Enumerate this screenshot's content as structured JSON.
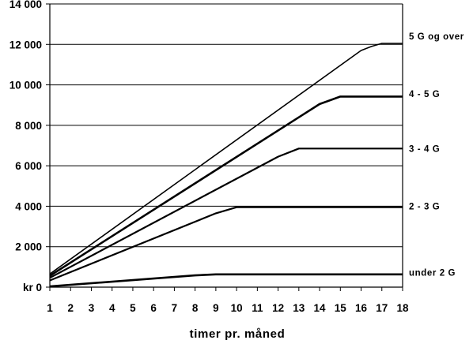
{
  "chart_data": {
    "type": "line",
    "title": "",
    "xlabel": "timer pr. måned",
    "ylabel": "",
    "xlim": [
      1,
      18
    ],
    "ylim": [
      0,
      14000
    ],
    "grid": "horizontal",
    "x_ticks": [
      "1",
      "2",
      "3",
      "4",
      "5",
      "6",
      "7",
      "8",
      "9",
      "10",
      "11",
      "12",
      "13",
      "14",
      "15",
      "16",
      "17",
      "18"
    ],
    "y_ticks": [
      "kr 0",
      "2 000",
      "4 000",
      "6 000",
      "8 000",
      "10 000",
      "12 000",
      "14 000"
    ],
    "y_tick_values": [
      0,
      2000,
      4000,
      6000,
      8000,
      10000,
      12000,
      14000
    ],
    "series": [
      {
        "name": "5 G og over",
        "lw": 1.6,
        "x": [
          1,
          16,
          16.5,
          17,
          18
        ],
        "y": [
          650,
          11700,
          11900,
          12050,
          12050
        ]
      },
      {
        "name": "4 - 5 G",
        "lw": 2.6,
        "x": [
          1,
          14,
          15,
          18
        ],
        "y": [
          560,
          9050,
          9420,
          9420
        ]
      },
      {
        "name": "3 - 4 G",
        "lw": 2.2,
        "x": [
          1,
          12,
          13,
          18
        ],
        "y": [
          460,
          6450,
          6850,
          6850
        ]
      },
      {
        "name": "2 - 3 G",
        "lw": 2.2,
        "x": [
          1,
          9,
          10,
          18
        ],
        "y": [
          330,
          3650,
          3950,
          3950
        ]
      },
      {
        "name": "under 2 G",
        "lw": 2.6,
        "x": [
          1,
          8,
          9,
          18
        ],
        "y": [
          40,
          580,
          630,
          630
        ]
      }
    ],
    "label_y": [
      12400,
      9550,
      6850,
      4000,
      730
    ]
  }
}
